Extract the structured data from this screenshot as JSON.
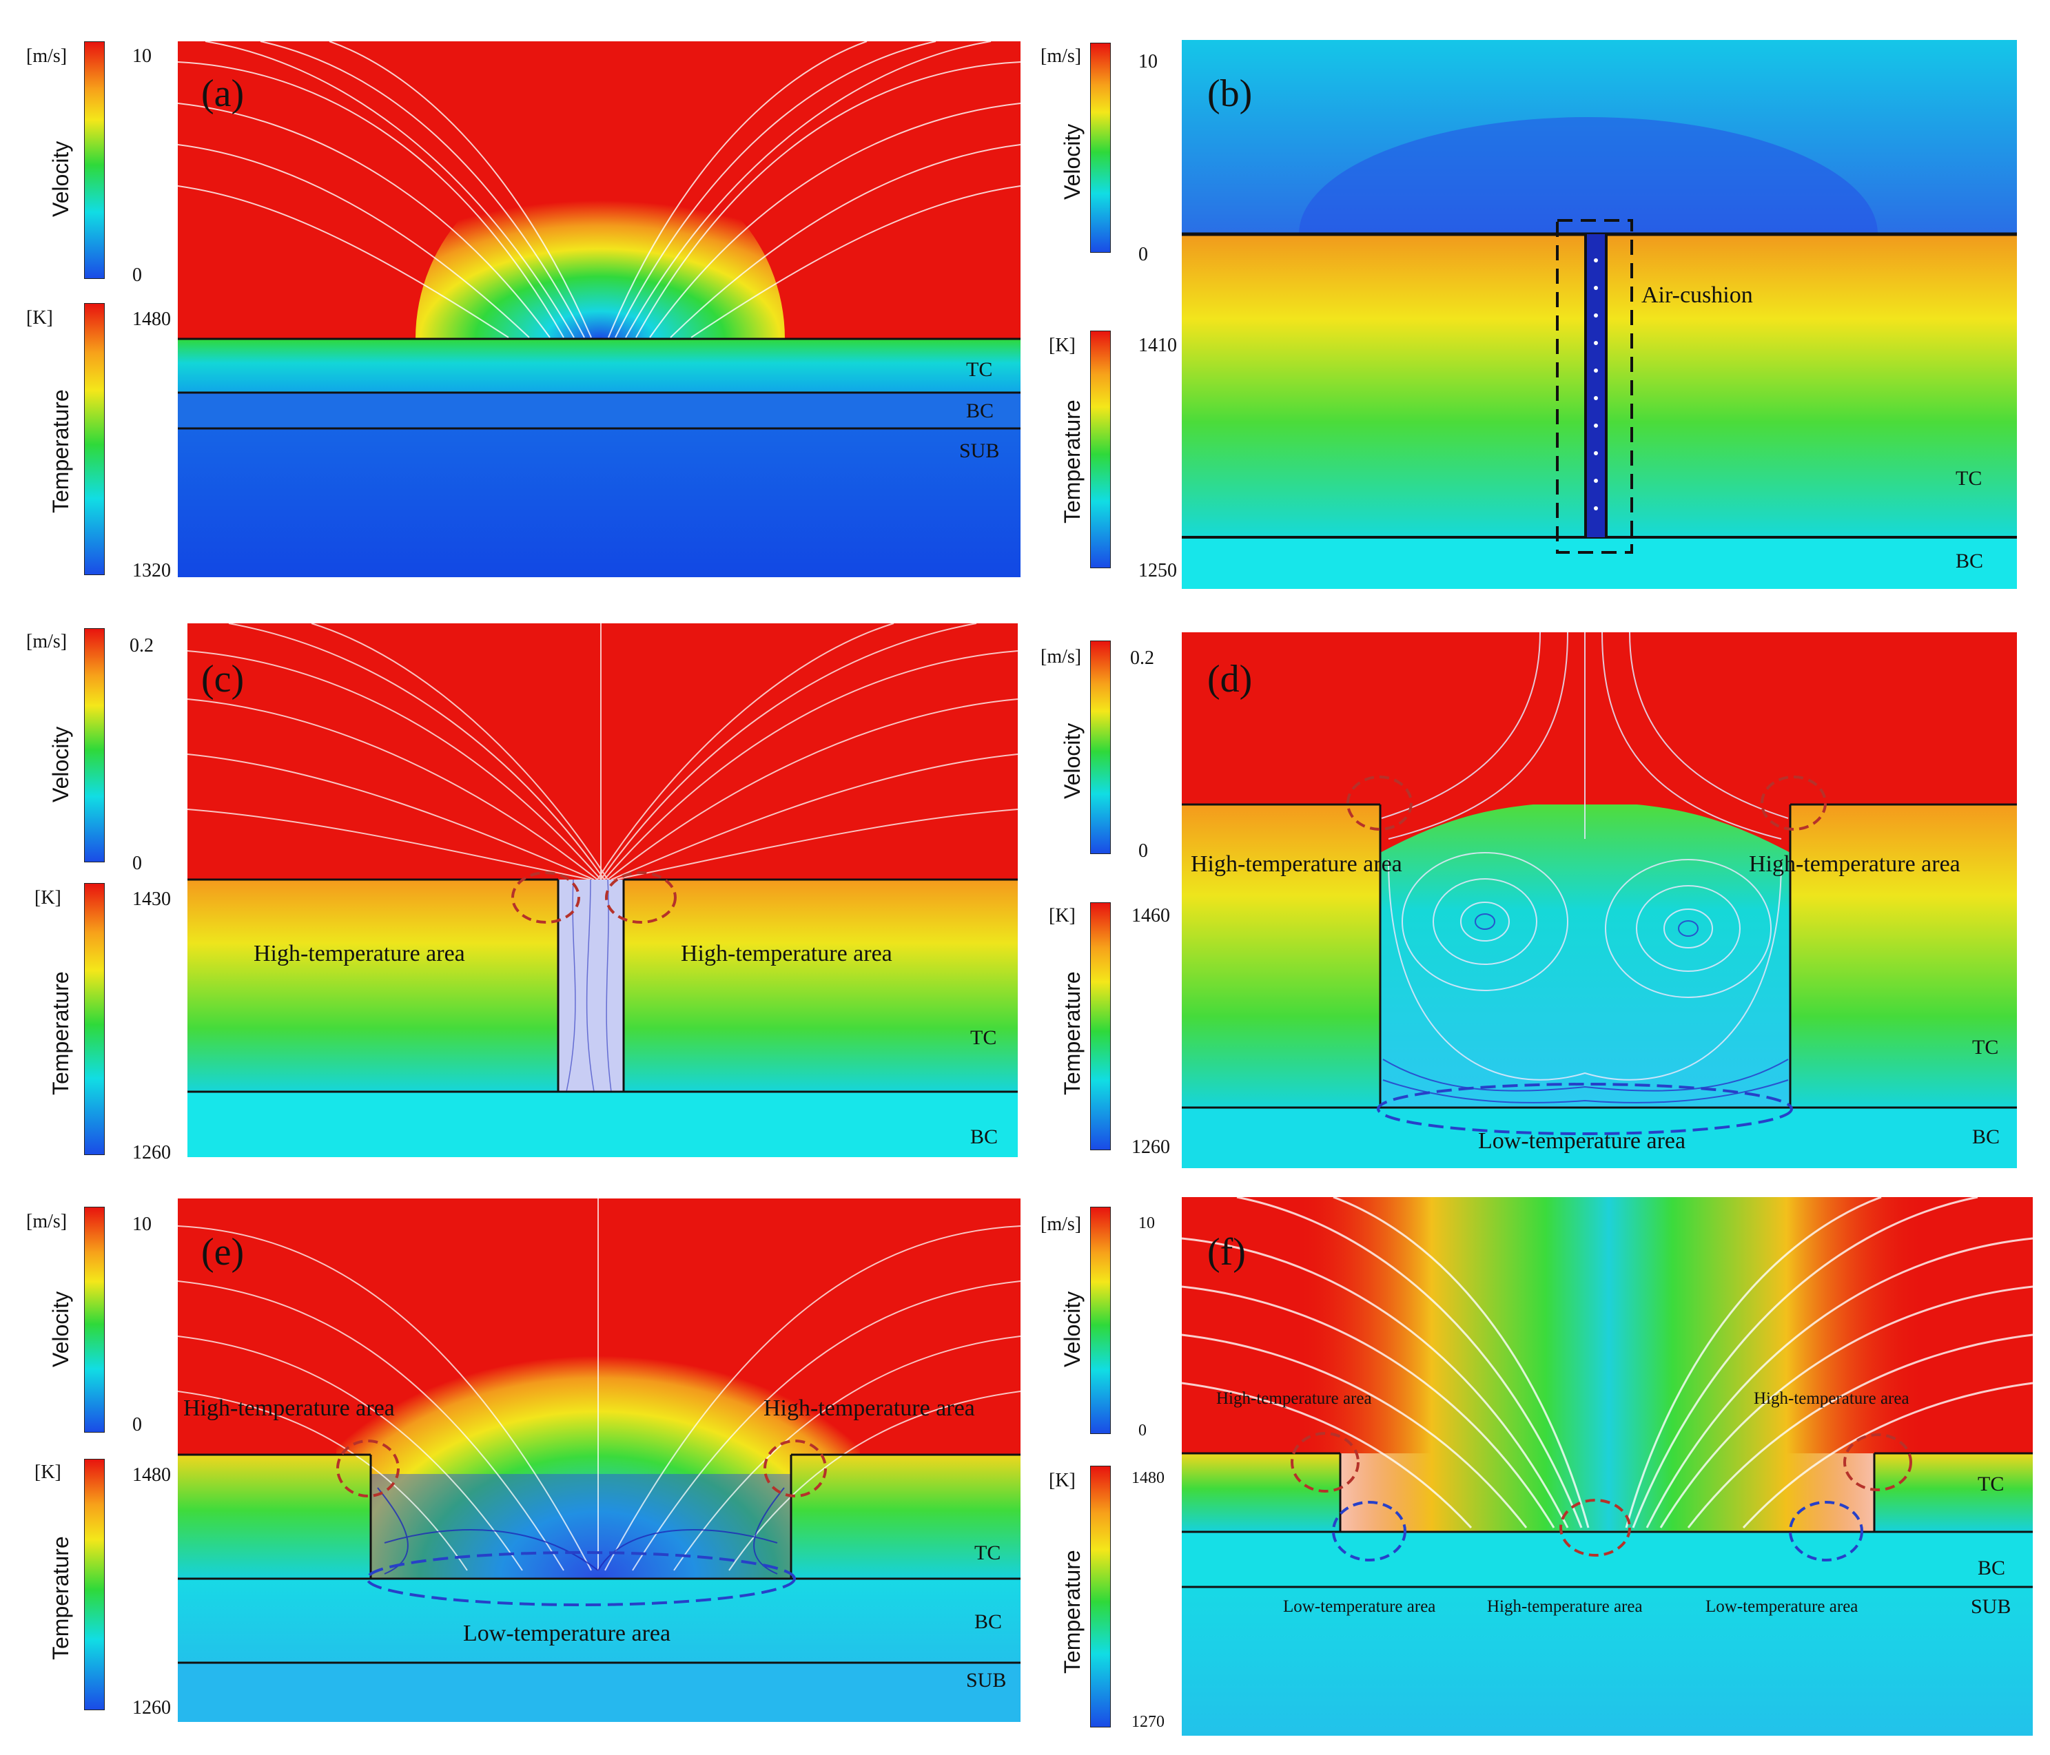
{
  "panels": {
    "a": {
      "label": "(a)",
      "velocity": {
        "unit": "[m/s]",
        "max": "10",
        "min": "0",
        "title": "Velocity"
      },
      "temperature": {
        "unit": "[K]",
        "max": "1480",
        "min": "1320",
        "title": "Temperature"
      },
      "regions": {
        "tc": "TC",
        "bc": "BC",
        "sub": "SUB"
      }
    },
    "b": {
      "label": "(b)",
      "velocity": {
        "unit": "[m/s]",
        "max": "10",
        "min": "0",
        "title": "Velocity"
      },
      "temperature": {
        "unit": "[K]",
        "max": "1410",
        "min": "1250",
        "title": "Temperature"
      },
      "regions": {
        "tc": "TC",
        "bc": "BC"
      },
      "annotation": "Air-cushion"
    },
    "c": {
      "label": "(c)",
      "velocity": {
        "unit": "[m/s]",
        "max": "0.2",
        "min": "0",
        "title": "Velocity"
      },
      "temperature": {
        "unit": "[K]",
        "max": "1430",
        "min": "1260",
        "title": "Temperature"
      },
      "regions": {
        "tc": "TC",
        "bc": "BC"
      },
      "areas": {
        "left_high": "High-temperature area",
        "right_high": "High-temperature area"
      }
    },
    "d": {
      "label": "(d)",
      "velocity": {
        "unit": "[m/s]",
        "max": "0.2",
        "min": "0",
        "title": "Velocity"
      },
      "temperature": {
        "unit": "[K]",
        "max": "1460",
        "min": "1260",
        "title": "Temperature"
      },
      "regions": {
        "tc": "TC",
        "bc": "BC"
      },
      "areas": {
        "left_high": "High-temperature area",
        "right_high": "High-temperature area",
        "low": "Low-temperature area"
      }
    },
    "e": {
      "label": "(e)",
      "velocity": {
        "unit": "[m/s]",
        "max": "10",
        "min": "0",
        "title": "Velocity"
      },
      "temperature": {
        "unit": "[K]",
        "max": "1480",
        "min": "1260",
        "title": "Temperature"
      },
      "regions": {
        "tc": "TC",
        "bc": "BC",
        "sub": "SUB"
      },
      "areas": {
        "left_high": "High-temperature area",
        "right_high": "High-temperature area",
        "low": "Low-temperature area"
      }
    },
    "f": {
      "label": "(f)",
      "velocity": {
        "unit": "[m/s]",
        "max": "10",
        "min": "0",
        "title": "Velocity"
      },
      "temperature": {
        "unit": "[K]",
        "max": "1480",
        "min": "1270",
        "title": "Temperature"
      },
      "regions": {
        "tc": "TC",
        "bc": "BC",
        "sub": "SUB"
      },
      "areas": {
        "left_high": "High-temperature area",
        "right_high": "High-temperature area",
        "left_low": "Low-temperature area",
        "center_high": "High-temperature area",
        "right_low": "Low-temperature area"
      }
    }
  },
  "colors": {
    "hot": "#e8140e",
    "orange": "#f7a11a",
    "yellow": "#f4e71a",
    "green": "#2fd93a",
    "cyan": "#11dde4",
    "blue": "#1a4be6",
    "streamline": "#ffffff",
    "cavity_streamline": "#2a35c8",
    "high_marker": "#b5322a",
    "low_marker": "#2740c8",
    "air_cushion_box": "#111111"
  }
}
